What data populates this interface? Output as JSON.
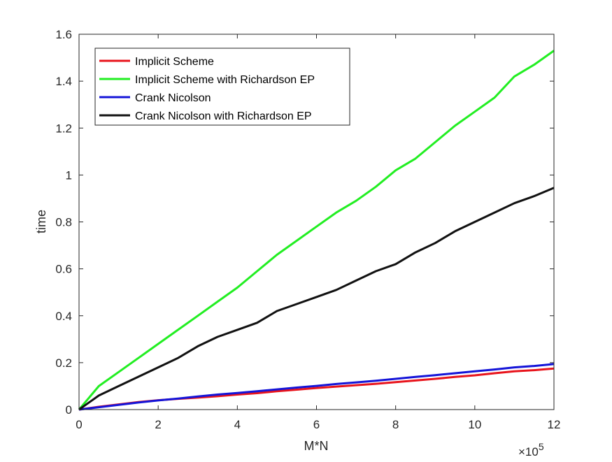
{
  "chart_data": {
    "type": "line",
    "title": "",
    "xlabel": "M*N",
    "ylabel": "time",
    "xlim": [
      0,
      1200000
    ],
    "ylim": [
      0,
      1.6
    ],
    "x_ticks": [
      0,
      2,
      4,
      6,
      8,
      10,
      12
    ],
    "x_tick_labels": [
      "0",
      "2",
      "4",
      "6",
      "8",
      "10",
      "12"
    ],
    "x_exponent_label": {
      "base": "×10",
      "exp": "5"
    },
    "y_ticks": [
      0,
      0.2,
      0.4,
      0.6,
      0.8,
      1.0,
      1.2,
      1.4,
      1.6
    ],
    "y_tick_labels": [
      "0",
      "0.2",
      "0.4",
      "0.6",
      "0.8",
      "1",
      "1.2",
      "1.4",
      "1.6"
    ],
    "legend_position": "top-left",
    "grid": false,
    "x": [
      0,
      50000,
      100000,
      150000,
      200000,
      250000,
      300000,
      350000,
      400000,
      450000,
      500000,
      550000,
      600000,
      650000,
      700000,
      750000,
      800000,
      850000,
      900000,
      950000,
      1000000,
      1050000,
      1100000,
      1150000,
      1200000
    ],
    "series": [
      {
        "name": "Implicit Scheme",
        "color": "#e8141c",
        "values": [
          0,
          0.012,
          0.022,
          0.032,
          0.04,
          0.046,
          0.051,
          0.057,
          0.064,
          0.07,
          0.078,
          0.085,
          0.092,
          0.098,
          0.104,
          0.11,
          0.117,
          0.124,
          0.131,
          0.139,
          0.146,
          0.155,
          0.163,
          0.168,
          0.175
        ]
      },
      {
        "name": "Implicit Scheme with Richardson EP",
        "color": "#22ee22",
        "values": [
          0,
          0.1,
          0.16,
          0.22,
          0.28,
          0.34,
          0.4,
          0.46,
          0.52,
          0.59,
          0.66,
          0.72,
          0.78,
          0.84,
          0.89,
          0.95,
          1.02,
          1.07,
          1.14,
          1.21,
          1.27,
          1.33,
          1.42,
          1.47,
          1.53
        ]
      },
      {
        "name": "Crank Nicolson",
        "color": "#1414d8",
        "values": [
          0,
          0.01,
          0.02,
          0.03,
          0.039,
          0.047,
          0.056,
          0.064,
          0.071,
          0.078,
          0.086,
          0.094,
          0.101,
          0.109,
          0.116,
          0.123,
          0.131,
          0.139,
          0.147,
          0.155,
          0.163,
          0.171,
          0.18,
          0.186,
          0.194
        ]
      },
      {
        "name": "Crank Nicolson with Richardson EP",
        "color": "#111111",
        "values": [
          0,
          0.06,
          0.1,
          0.14,
          0.18,
          0.22,
          0.27,
          0.31,
          0.34,
          0.37,
          0.42,
          0.45,
          0.48,
          0.51,
          0.55,
          0.59,
          0.62,
          0.67,
          0.71,
          0.76,
          0.8,
          0.84,
          0.88,
          0.91,
          0.945
        ]
      }
    ]
  }
}
